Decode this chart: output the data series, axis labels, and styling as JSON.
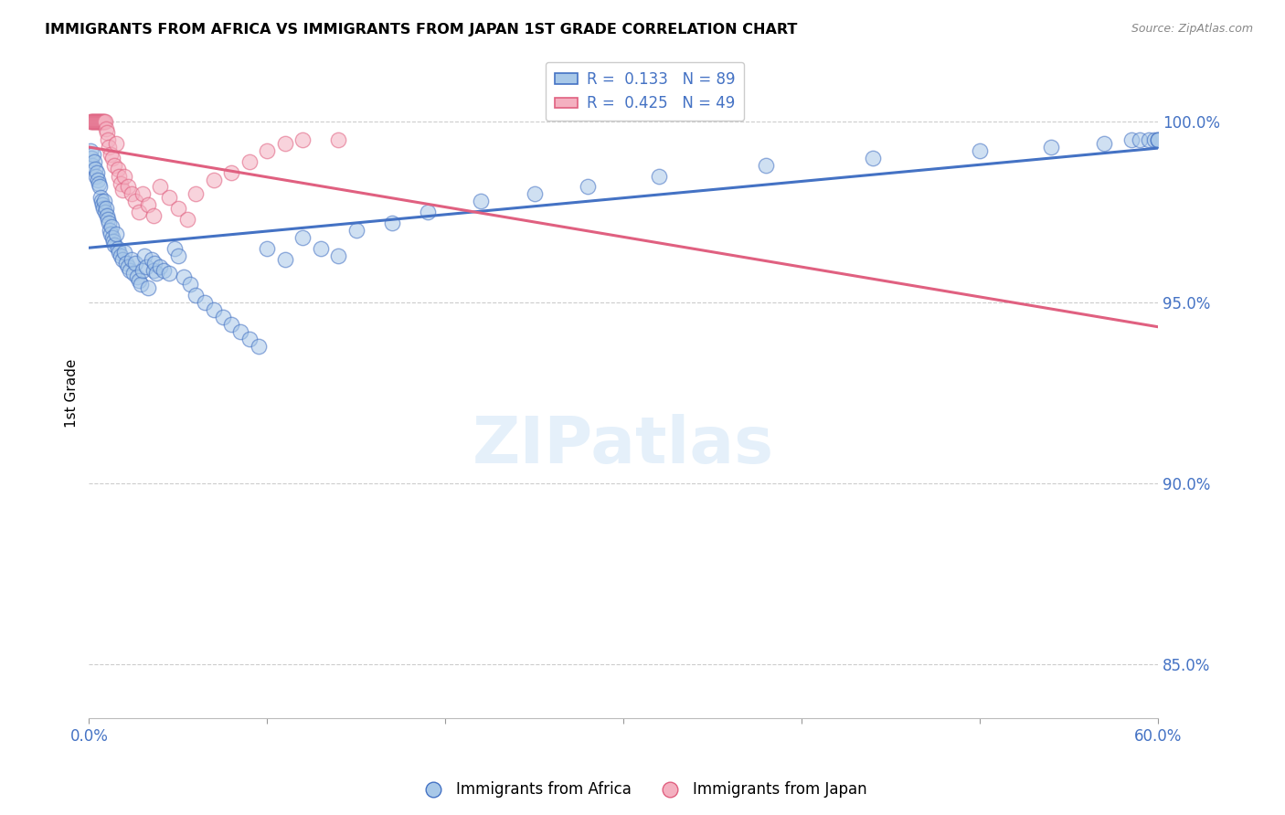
{
  "title": "IMMIGRANTS FROM AFRICA VS IMMIGRANTS FROM JAPAN 1ST GRADE CORRELATION CHART",
  "source": "Source: ZipAtlas.com",
  "ylabel": "1st Grade",
  "yticks": [
    85.0,
    90.0,
    95.0,
    100.0
  ],
  "xlim": [
    0.0,
    60.0
  ],
  "ylim": [
    83.5,
    101.5
  ],
  "africa_R": 0.133,
  "africa_N": 89,
  "japan_R": 0.425,
  "japan_N": 49,
  "africa_color": "#a8c8e8",
  "japan_color": "#f4b0c0",
  "africa_edge_color": "#4472c4",
  "japan_edge_color": "#e06080",
  "africa_line_color": "#4472c4",
  "japan_line_color": "#e06080",
  "africa_x": [
    0.1,
    0.15,
    0.2,
    0.25,
    0.3,
    0.35,
    0.4,
    0.45,
    0.5,
    0.55,
    0.6,
    0.65,
    0.7,
    0.75,
    0.8,
    0.85,
    0.9,
    0.95,
    1.0,
    1.05,
    1.1,
    1.15,
    1.2,
    1.25,
    1.3,
    1.35,
    1.4,
    1.5,
    1.6,
    1.7,
    1.8,
    1.9,
    2.0,
    2.1,
    2.2,
    2.3,
    2.4,
    2.5,
    2.6,
    2.7,
    2.8,
    2.9,
    3.0,
    3.1,
    3.2,
    3.3,
    3.5,
    3.6,
    3.7,
    3.8,
    4.0,
    4.2,
    4.5,
    4.8,
    5.0,
    5.3,
    5.7,
    6.0,
    6.5,
    7.0,
    7.5,
    8.0,
    8.5,
    9.0,
    9.5,
    10.0,
    11.0,
    12.0,
    13.0,
    14.0,
    15.0,
    17.0,
    19.0,
    22.0,
    25.0,
    28.0,
    32.0,
    38.0,
    44.0,
    50.0,
    54.0,
    57.0,
    58.5,
    59.0,
    59.5,
    59.8,
    60.0,
    60.0,
    60.0
  ],
  "africa_y": [
    99.2,
    99.0,
    98.8,
    99.1,
    98.9,
    98.7,
    98.5,
    98.6,
    98.4,
    98.3,
    98.2,
    97.9,
    97.8,
    97.7,
    97.6,
    97.8,
    97.5,
    97.6,
    97.4,
    97.3,
    97.2,
    97.0,
    96.9,
    97.1,
    96.8,
    96.7,
    96.6,
    96.9,
    96.5,
    96.4,
    96.3,
    96.2,
    96.4,
    96.1,
    96.0,
    95.9,
    96.2,
    95.8,
    96.1,
    95.7,
    95.6,
    95.5,
    95.9,
    96.3,
    96.0,
    95.4,
    96.2,
    95.9,
    96.1,
    95.8,
    96.0,
    95.9,
    95.8,
    96.5,
    96.3,
    95.7,
    95.5,
    95.2,
    95.0,
    94.8,
    94.6,
    94.4,
    94.2,
    94.0,
    93.8,
    96.5,
    96.2,
    96.8,
    96.5,
    96.3,
    97.0,
    97.2,
    97.5,
    97.8,
    98.0,
    98.2,
    98.5,
    98.8,
    99.0,
    99.2,
    99.3,
    99.4,
    99.5,
    99.5,
    99.5,
    99.5,
    99.5,
    99.5,
    99.5
  ],
  "japan_x": [
    0.1,
    0.15,
    0.2,
    0.25,
    0.3,
    0.35,
    0.4,
    0.45,
    0.5,
    0.55,
    0.6,
    0.65,
    0.7,
    0.75,
    0.8,
    0.85,
    0.9,
    0.95,
    1.0,
    1.05,
    1.1,
    1.2,
    1.3,
    1.4,
    1.5,
    1.6,
    1.7,
    1.8,
    1.9,
    2.0,
    2.2,
    2.4,
    2.6,
    2.8,
    3.0,
    3.3,
    3.6,
    4.0,
    4.5,
    5.0,
    5.5,
    6.0,
    7.0,
    8.0,
    9.0,
    10.0,
    11.0,
    12.0,
    14.0
  ],
  "japan_y": [
    100.0,
    100.0,
    100.0,
    100.0,
    100.0,
    100.0,
    100.0,
    100.0,
    100.0,
    100.0,
    100.0,
    100.0,
    100.0,
    100.0,
    100.0,
    100.0,
    100.0,
    99.8,
    99.7,
    99.5,
    99.3,
    99.1,
    99.0,
    98.8,
    99.4,
    98.7,
    98.5,
    98.3,
    98.1,
    98.5,
    98.2,
    98.0,
    97.8,
    97.5,
    98.0,
    97.7,
    97.4,
    98.2,
    97.9,
    97.6,
    97.3,
    98.0,
    98.4,
    98.6,
    98.9,
    99.2,
    99.4,
    99.5,
    99.5
  ]
}
